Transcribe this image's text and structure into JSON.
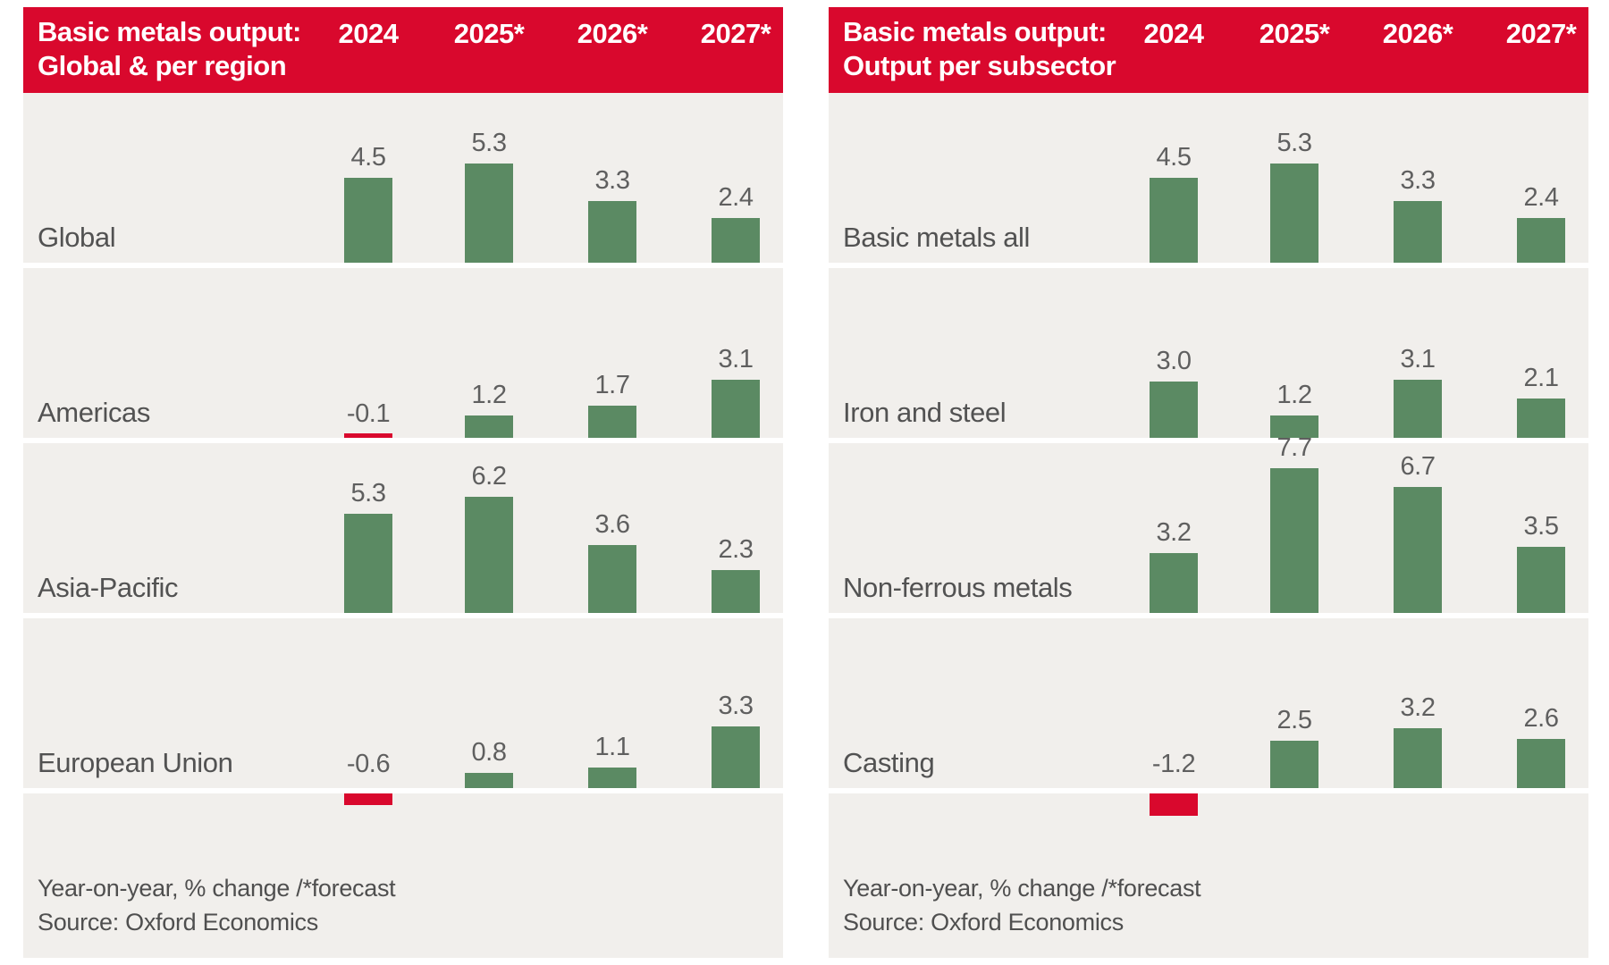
{
  "colors": {
    "header_bg": "#d9082d",
    "positive_bar": "#5b8a63",
    "negative_bar": "#d9082d",
    "panel_bg": "#f1efec",
    "header_text": "#ffffff",
    "label_text": "#525252",
    "value_text": "#5f5f5f"
  },
  "chart_data": [
    {
      "type": "bar",
      "title": "Basic metals output: Global & per region",
      "title_lines": [
        "Basic metals output:",
        "Global & per region"
      ],
      "columns": [
        "2024",
        "2025*",
        "2026*",
        "2027*"
      ],
      "series": [
        {
          "name": "Global",
          "values": [
            4.5,
            5.3,
            3.3,
            2.4
          ]
        },
        {
          "name": "Americas",
          "values": [
            -0.1,
            1.2,
            1.7,
            3.1
          ]
        },
        {
          "name": "Asia-Pacific",
          "values": [
            5.3,
            6.2,
            3.6,
            2.3
          ]
        },
        {
          "name": "European Union",
          "values": [
            -0.6,
            0.8,
            1.1,
            3.3
          ]
        }
      ],
      "ylabel": "",
      "ylim": [
        -1.5,
        8
      ],
      "grid": false,
      "legend": "none",
      "footnote": "Year-on-year, % change /*forecast",
      "source": "Source: Oxford Economics"
    },
    {
      "type": "bar",
      "title": "Basic metals output: Output per subsector",
      "title_lines": [
        "Basic metals output:",
        "Output per subsector"
      ],
      "columns": [
        "2024",
        "2025*",
        "2026*",
        "2027*"
      ],
      "series": [
        {
          "name": "Basic metals all",
          "values": [
            4.5,
            5.3,
            3.3,
            2.4
          ]
        },
        {
          "name": "Iron and steel",
          "values": [
            3.0,
            1.2,
            3.1,
            2.1
          ]
        },
        {
          "name": "Non-ferrous metals",
          "values": [
            3.2,
            7.7,
            6.7,
            3.5
          ]
        },
        {
          "name": "Casting",
          "values": [
            -1.2,
            2.5,
            3.2,
            2.6
          ]
        }
      ],
      "ylabel": "",
      "ylim": [
        -1.5,
        8
      ],
      "grid": false,
      "legend": "none",
      "footnote": "Year-on-year, % change /*forecast",
      "source": "Source: Oxford Economics"
    }
  ]
}
